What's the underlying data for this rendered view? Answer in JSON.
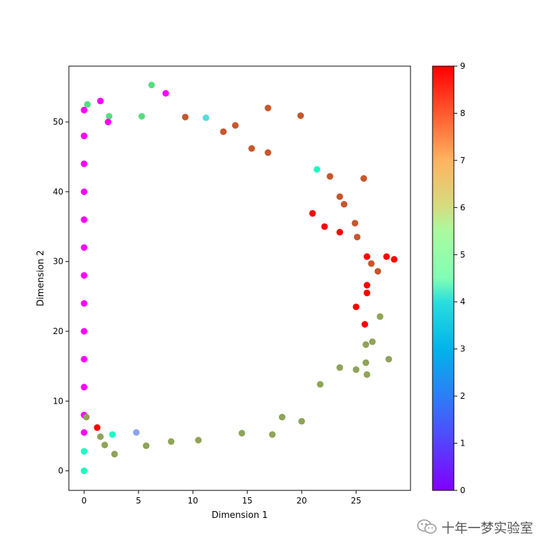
{
  "chart_data": {
    "type": "scatter",
    "title": "",
    "xlabel": "Dimension 1",
    "ylabel": "Dimension 2",
    "xlim": [
      -1.4,
      30
    ],
    "ylim": [
      -2.8,
      58
    ],
    "xticks": [
      0,
      5,
      10,
      15,
      20,
      25
    ],
    "yticks": [
      0,
      10,
      20,
      30,
      40,
      50
    ],
    "grid": false,
    "colormap": "rainbow",
    "colorbar": {
      "min": 0,
      "max": 9,
      "ticks": [
        0,
        1,
        2,
        3,
        4,
        5,
        6,
        7,
        8,
        9
      ]
    },
    "points": [
      {
        "x": 0,
        "y": 0,
        "c": 4
      },
      {
        "x": 0,
        "y": 2.8,
        "c": 4
      },
      {
        "x": 0,
        "y": 5.5,
        "c": 0
      },
      {
        "x": 0,
        "y": 8,
        "c": 0
      },
      {
        "x": 0,
        "y": 12,
        "c": 0
      },
      {
        "x": 0,
        "y": 16,
        "c": 0
      },
      {
        "x": 0,
        "y": 20,
        "c": 0
      },
      {
        "x": 0,
        "y": 24,
        "c": 0
      },
      {
        "x": 0,
        "y": 28,
        "c": 0
      },
      {
        "x": 0,
        "y": 32,
        "c": 0
      },
      {
        "x": 0,
        "y": 36,
        "c": 0
      },
      {
        "x": 0,
        "y": 40,
        "c": 0
      },
      {
        "x": 0,
        "y": 44,
        "c": 0
      },
      {
        "x": 0,
        "y": 48,
        "c": 0
      },
      {
        "x": 0,
        "y": 51.7,
        "c": 0
      },
      {
        "x": 0.3,
        "y": 52.5,
        "c": 6
      },
      {
        "x": 1.5,
        "y": 53,
        "c": 0
      },
      {
        "x": 6.2,
        "y": 55.3,
        "c": 6
      },
      {
        "x": 7.5,
        "y": 54.1,
        "c": 0
      },
      {
        "x": 2.3,
        "y": 50.8,
        "c": 6
      },
      {
        "x": 2.2,
        "y": 50,
        "c": 0
      },
      {
        "x": 5.3,
        "y": 50.8,
        "c": 6
      },
      {
        "x": 9.3,
        "y": 50.7,
        "c": 8
      },
      {
        "x": 11.2,
        "y": 50.6,
        "c": 3
      },
      {
        "x": 16.9,
        "y": 52,
        "c": 8
      },
      {
        "x": 19.9,
        "y": 50.9,
        "c": 8
      },
      {
        "x": 13.9,
        "y": 49.5,
        "c": 8
      },
      {
        "x": 12.8,
        "y": 48.6,
        "c": 8
      },
      {
        "x": 15.4,
        "y": 46.2,
        "c": 8
      },
      {
        "x": 16.9,
        "y": 45.6,
        "c": 8
      },
      {
        "x": 21.4,
        "y": 43.2,
        "c": 4
      },
      {
        "x": 22.6,
        "y": 42.2,
        "c": 8
      },
      {
        "x": 25.7,
        "y": 41.9,
        "c": 8
      },
      {
        "x": 23.5,
        "y": 39.3,
        "c": 8
      },
      {
        "x": 23.9,
        "y": 38.2,
        "c": 8
      },
      {
        "x": 21,
        "y": 36.9,
        "c": 9
      },
      {
        "x": 24.9,
        "y": 35.5,
        "c": 8
      },
      {
        "x": 22.1,
        "y": 35,
        "c": 9
      },
      {
        "x": 23.5,
        "y": 34.2,
        "c": 9
      },
      {
        "x": 25.1,
        "y": 33.5,
        "c": 8
      },
      {
        "x": 28.5,
        "y": 30.3,
        "c": 9
      },
      {
        "x": 27.8,
        "y": 30.7,
        "c": 9
      },
      {
        "x": 26,
        "y": 30.7,
        "c": 9
      },
      {
        "x": 26.4,
        "y": 29.7,
        "c": 8
      },
      {
        "x": 27,
        "y": 28.6,
        "c": 8
      },
      {
        "x": 26,
        "y": 26.6,
        "c": 9
      },
      {
        "x": 26,
        "y": 25.5,
        "c": 9
      },
      {
        "x": 25,
        "y": 23.5,
        "c": 9
      },
      {
        "x": 27.2,
        "y": 22.1,
        "c": 7
      },
      {
        "x": 25.8,
        "y": 21,
        "c": 9
      },
      {
        "x": 26.5,
        "y": 18.5,
        "c": 7
      },
      {
        "x": 25.9,
        "y": 18.1,
        "c": 7
      },
      {
        "x": 28,
        "y": 16,
        "c": 7
      },
      {
        "x": 25.9,
        "y": 15.5,
        "c": 7
      },
      {
        "x": 25,
        "y": 14.5,
        "c": 7
      },
      {
        "x": 26,
        "y": 13.8,
        "c": 7
      },
      {
        "x": 23.5,
        "y": 14.8,
        "c": 7
      },
      {
        "x": 21.7,
        "y": 12.4,
        "c": 7
      },
      {
        "x": 20,
        "y": 7.1,
        "c": 7
      },
      {
        "x": 18.2,
        "y": 7.7,
        "c": 7
      },
      {
        "x": 17.3,
        "y": 5.2,
        "c": 7
      },
      {
        "x": 14.5,
        "y": 5.4,
        "c": 7
      },
      {
        "x": 10.5,
        "y": 4.4,
        "c": 7
      },
      {
        "x": 8,
        "y": 4.2,
        "c": 7
      },
      {
        "x": 5.7,
        "y": 3.6,
        "c": 7
      },
      {
        "x": 2.8,
        "y": 2.4,
        "c": 7
      },
      {
        "x": 1.9,
        "y": 3.7,
        "c": 7
      },
      {
        "x": 1.5,
        "y": 4.9,
        "c": 7
      },
      {
        "x": 2.6,
        "y": 5.2,
        "c": 4
      },
      {
        "x": 4.8,
        "y": 5.5,
        "c": 2
      },
      {
        "x": 1.2,
        "y": 6.2,
        "c": 9
      },
      {
        "x": 0.2,
        "y": 7.7,
        "c": 7
      }
    ]
  },
  "watermark": {
    "icon": "wechat-icon",
    "text": "十年一梦实验室"
  }
}
